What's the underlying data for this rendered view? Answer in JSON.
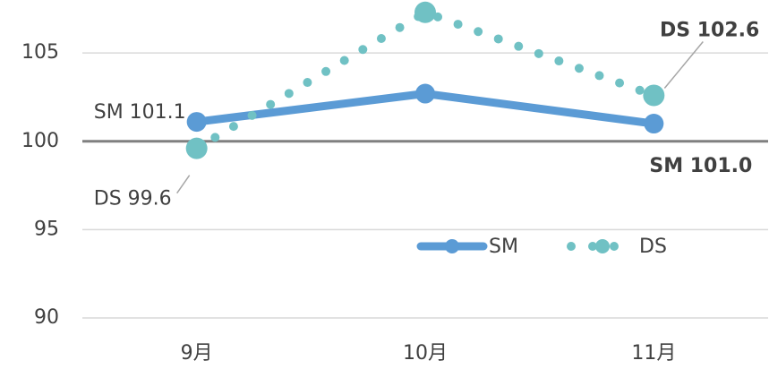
{
  "chart_data": {
    "type": "line",
    "categories": [
      "9月",
      "10月",
      "11月"
    ],
    "series": [
      {
        "name": "SM",
        "color": "#5b9bd5",
        "values": [
          101.1,
          102.7,
          101.0
        ],
        "value_labels": [
          "SM 101.1",
          null,
          "SM 101.0"
        ]
      },
      {
        "name": "DS",
        "color": "#70c1c4",
        "values": [
          99.6,
          107.3,
          102.6
        ],
        "value_labels": [
          "DS 99.6",
          null,
          "DS 102.6"
        ]
      }
    ],
    "ylim": [
      90,
      108
    ],
    "yticks": [
      90,
      95,
      100,
      105
    ],
    "grid": true,
    "baseline": 100,
    "legend": "bottom-center"
  }
}
